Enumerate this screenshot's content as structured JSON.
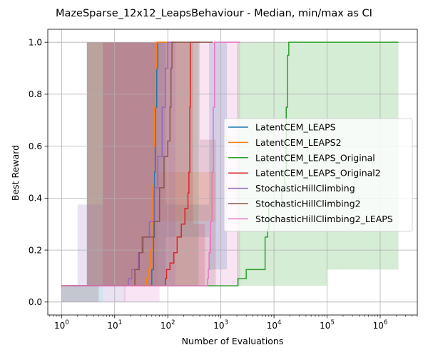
{
  "chart_data": {
    "type": "line",
    "title": "MazeSparse_12x12_LeapsBehaviour - Median, min/max as CI",
    "xlabel": "Number of Evaluations",
    "ylabel": "Best Reward",
    "x_scale": "log",
    "xlim": [
      0.55,
      5000000
    ],
    "ylim": [
      -0.05,
      1.05
    ],
    "x_ticks": [
      {
        "value": 1,
        "base": "10",
        "exp": "0"
      },
      {
        "value": 10,
        "base": "10",
        "exp": "1"
      },
      {
        "value": 100,
        "base": "10",
        "exp": "2"
      },
      {
        "value": 1000,
        "base": "10",
        "exp": "3"
      },
      {
        "value": 10000,
        "base": "10",
        "exp": "4"
      },
      {
        "value": 100000,
        "base": "10",
        "exp": "5"
      },
      {
        "value": 1000000,
        "base": "10",
        "exp": "6"
      }
    ],
    "y_ticks": [
      "0.0",
      "0.2",
      "0.4",
      "0.6",
      "0.8",
      "1.0"
    ],
    "grid": true,
    "legend_position": "center-right",
    "series": [
      {
        "name": "LatentCEM_LEAPS",
        "color": "#1f77b4",
        "line": [
          [
            1,
            0.0625
          ],
          [
            45,
            0.0625
          ],
          [
            50,
            0.125
          ],
          [
            54,
            0.25
          ],
          [
            56,
            0.5
          ],
          [
            58,
            0.75
          ],
          [
            62,
            0.9
          ],
          [
            65,
            1.0
          ],
          [
            100,
            1.0
          ]
        ],
        "band": [
          {
            "x": [
              1,
              6
            ],
            "low": 0,
            "high": 0.0625
          },
          {
            "x": [
              3,
              90
            ],
            "low": 0.0625,
            "high": 1.0
          },
          {
            "x": [
              90,
              600
            ],
            "low": 0.25,
            "high": 0.375
          },
          {
            "x": [
              600,
              1300
            ],
            "low": 0.125,
            "high": 1.0
          }
        ]
      },
      {
        "name": "LatentCEM_LEAPS2",
        "color": "#ff7f0e",
        "line": [
          [
            1,
            0.0625
          ],
          [
            38,
            0.0625
          ],
          [
            40,
            0.09
          ],
          [
            44,
            0.125
          ],
          [
            47,
            0.2
          ],
          [
            50,
            0.3
          ],
          [
            52,
            0.45
          ],
          [
            54,
            0.6
          ],
          [
            56,
            0.75
          ],
          [
            58,
            0.9
          ],
          [
            62,
            1.0
          ],
          [
            150,
            1.0
          ]
        ],
        "band": [
          {
            "x": [
              3,
              65
            ],
            "low": 0.0625,
            "high": 1.0
          },
          {
            "x": [
              65,
              800
            ],
            "low": 0.3125,
            "high": 0.5
          }
        ]
      },
      {
        "name": "LatentCEM_LEAPS_Original",
        "color": "#2ca02c",
        "line": [
          [
            1,
            0.0625
          ],
          [
            400,
            0.0625
          ],
          [
            2000,
            0.0625
          ],
          [
            2100,
            0.09
          ],
          [
            3000,
            0.125
          ],
          [
            5000,
            0.125
          ],
          [
            6800,
            0.25
          ],
          [
            7600,
            0.28
          ],
          [
            8000,
            0.375
          ],
          [
            10000,
            0.375
          ],
          [
            14000,
            0.43
          ],
          [
            16000,
            0.5
          ],
          [
            17000,
            0.75
          ],
          [
            18000,
            0.95
          ],
          [
            19000,
            1.0
          ],
          [
            2200000,
            1.0
          ]
        ],
        "band": [
          {
            "x": [
              3,
              380
            ],
            "low": 0.0625,
            "high": 1.0
          },
          {
            "x": [
              380,
              2000
            ],
            "low": 0.0625,
            "high": 0.0625
          },
          {
            "x": [
              2000,
              100000
            ],
            "low": 0.0625,
            "high": 1.0
          },
          {
            "x": [
              100000,
              2200000
            ],
            "low": 0.125,
            "high": 1.0
          }
        ]
      },
      {
        "name": "LatentCEM_LEAPS_Original2",
        "color": "#d62728",
        "line": [
          [
            1,
            0.0625
          ],
          [
            88,
            0.0625
          ],
          [
            90,
            0.09
          ],
          [
            95,
            0.125
          ],
          [
            110,
            0.15
          ],
          [
            130,
            0.19
          ],
          [
            150,
            0.25
          ],
          [
            180,
            0.3
          ],
          [
            210,
            0.36
          ],
          [
            240,
            0.42
          ],
          [
            250,
            0.5
          ],
          [
            260,
            0.75
          ],
          [
            265,
            1.0
          ],
          [
            400,
            1.0
          ]
        ],
        "band": [
          {
            "x": [
              6,
              300
            ],
            "low": 0.0625,
            "high": 1.0
          },
          {
            "x": [
              300,
              500
            ],
            "low": 0.0625,
            "high": 0.3
          }
        ]
      },
      {
        "name": "StochasticHillClimbing",
        "color": "#9467bd",
        "line": [
          [
            1,
            0.0625
          ],
          [
            17,
            0.0625
          ],
          [
            18,
            0.09
          ],
          [
            21,
            0.125
          ],
          [
            28,
            0.19
          ],
          [
            35,
            0.25
          ],
          [
            45,
            0.31
          ],
          [
            55,
            0.44
          ],
          [
            65,
            0.56
          ],
          [
            78,
            0.75
          ],
          [
            90,
            0.9
          ],
          [
            100,
            1.0
          ],
          [
            130,
            1.0
          ]
        ],
        "band": [
          {
            "x": [
              2,
              6
            ],
            "low": 0.0625,
            "high": 0.375
          },
          {
            "x": [
              6,
              16
            ],
            "low": 0,
            "high": 0.0625
          },
          {
            "x": [
              6,
              140
            ],
            "low": 0.0625,
            "high": 1.0
          }
        ]
      },
      {
        "name": "StochasticHillClimbing2",
        "color": "#8c564b",
        "line": [
          [
            1,
            0.0625
          ],
          [
            20,
            0.0625
          ],
          [
            24,
            0.125
          ],
          [
            29,
            0.19
          ],
          [
            33,
            0.25
          ],
          [
            50,
            0.25
          ],
          [
            55,
            0.31
          ],
          [
            70,
            0.44
          ],
          [
            85,
            0.56
          ],
          [
            100,
            0.62
          ],
          [
            110,
            0.75
          ],
          [
            115,
            0.9
          ],
          [
            120,
            1.0
          ],
          [
            700,
            1.0
          ]
        ],
        "band": [
          {
            "x": [
              1,
              5
            ],
            "low": 0,
            "high": 0.0625
          },
          {
            "x": [
              3,
              400
            ],
            "low": 0.0625,
            "high": 1.0
          },
          {
            "x": [
              400,
              800
            ],
            "low": 0.0625,
            "high": 0.625
          }
        ]
      },
      {
        "name": "StochasticHillClimbing2_LEAPS",
        "color": "#e377c2",
        "line": [
          [
            1,
            0.0625
          ],
          [
            550,
            0.0625
          ],
          [
            560,
            0.09
          ],
          [
            580,
            0.125
          ],
          [
            600,
            0.19
          ],
          [
            640,
            0.31
          ],
          [
            680,
            0.5
          ],
          [
            720,
            0.75
          ],
          [
            760,
            1.0
          ],
          [
            2300,
            1.0
          ]
        ],
        "band": [
          {
            "x": [
              3,
              600
            ],
            "low": 0.0625,
            "high": 1.0
          },
          {
            "x": [
              15,
              70
            ],
            "low": 0,
            "high": 0.0625
          },
          {
            "x": [
              600,
              2300
            ],
            "low": 0.0625,
            "high": 1.0
          }
        ]
      }
    ]
  }
}
